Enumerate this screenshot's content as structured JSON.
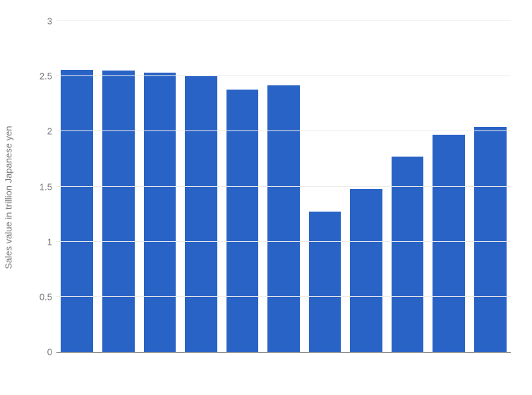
{
  "chart": {
    "type": "bar",
    "y_axis_title": "Sales value in trillion Japanese yen",
    "values": [
      2.56,
      2.55,
      2.53,
      2.5,
      2.38,
      2.42,
      1.27,
      1.48,
      1.77,
      1.97,
      2.04
    ],
    "bar_color": "#2a63c6",
    "ylim": [
      0,
      3
    ],
    "ytick_step": 0.5,
    "yticks": [
      0,
      0.5,
      1,
      1.5,
      2,
      2.5,
      3
    ],
    "background_color": "#ffffff",
    "grid_color": "#ececec",
    "axis_line_color": "#7a7a7a",
    "tick_label_color": "#7a7a7a",
    "tick_label_fontsize": 13,
    "axis_title_fontsize": 13,
    "bar_width_ratio": 0.78
  }
}
